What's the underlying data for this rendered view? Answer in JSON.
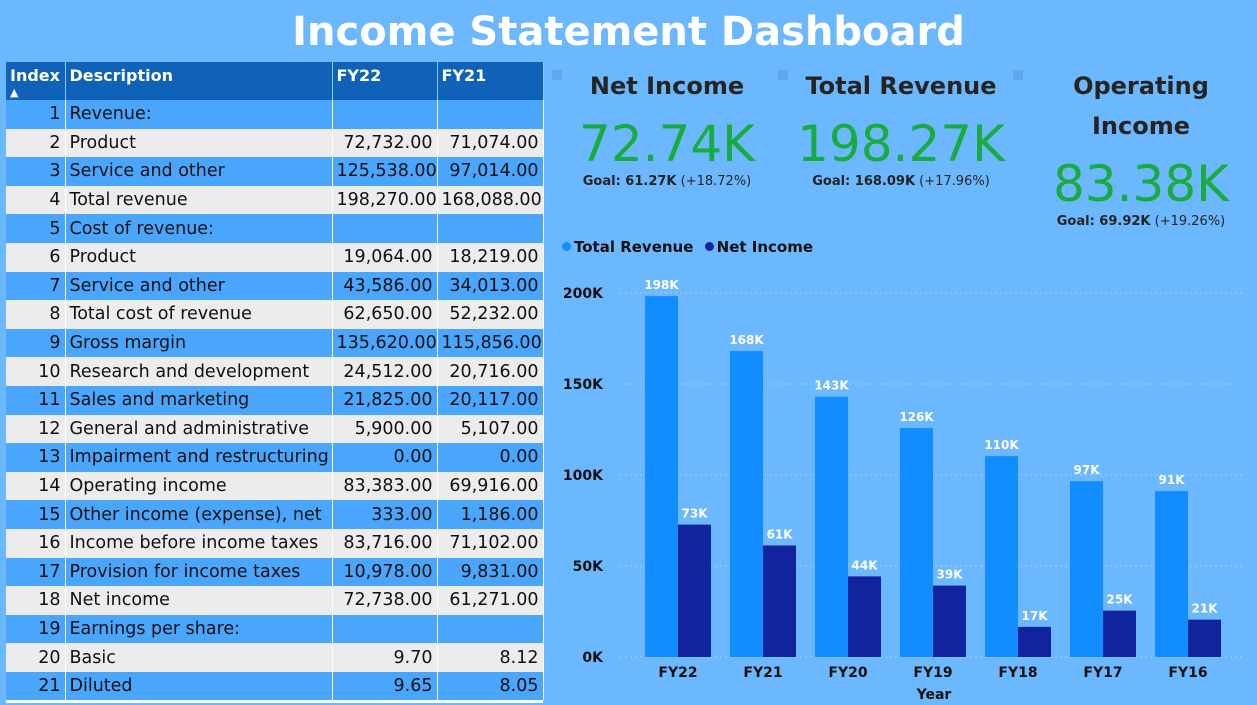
{
  "header": {
    "title": "Income Statement Dashboard"
  },
  "table": {
    "columns": [
      "Index",
      "Description",
      "FY22",
      "FY21"
    ],
    "sort_indicator": "▲",
    "rows": [
      {
        "index": "1",
        "description": "Revenue:",
        "fy22": "",
        "fy21": ""
      },
      {
        "index": "2",
        "description": "Product",
        "fy22": "72,732.00",
        "fy21": "71,074.00"
      },
      {
        "index": "3",
        "description": "Service and other",
        "fy22": "125,538.00",
        "fy21": "97,014.00"
      },
      {
        "index": "4",
        "description": "Total revenue",
        "fy22": "198,270.00",
        "fy21": "168,088.00"
      },
      {
        "index": "5",
        "description": "Cost of revenue:",
        "fy22": "",
        "fy21": ""
      },
      {
        "index": "6",
        "description": "Product",
        "fy22": "19,064.00",
        "fy21": "18,219.00"
      },
      {
        "index": "7",
        "description": "Service and other",
        "fy22": "43,586.00",
        "fy21": "34,013.00"
      },
      {
        "index": "8",
        "description": "Total cost of revenue",
        "fy22": "62,650.00",
        "fy21": "52,232.00"
      },
      {
        "index": "9",
        "description": "Gross margin",
        "fy22": "135,620.00",
        "fy21": "115,856.00"
      },
      {
        "index": "10",
        "description": "Research and development",
        "fy22": "24,512.00",
        "fy21": "20,716.00"
      },
      {
        "index": "11",
        "description": "Sales and marketing",
        "fy22": "21,825.00",
        "fy21": "20,117.00"
      },
      {
        "index": "12",
        "description": "General and administrative",
        "fy22": "5,900.00",
        "fy21": "5,107.00"
      },
      {
        "index": "13",
        "description": "Impairment and restructuring",
        "fy22": "0.00",
        "fy21": "0.00"
      },
      {
        "index": "14",
        "description": "Operating income",
        "fy22": "83,383.00",
        "fy21": "69,916.00"
      },
      {
        "index": "15",
        "description": "Other income (expense), net",
        "fy22": "333.00",
        "fy21": "1,186.00"
      },
      {
        "index": "16",
        "description": "Income before income taxes",
        "fy22": "83,716.00",
        "fy21": "71,102.00"
      },
      {
        "index": "17",
        "description": "Provision for income taxes",
        "fy22": "10,978.00",
        "fy21": "9,831.00"
      },
      {
        "index": "18",
        "description": "Net income",
        "fy22": "72,738.00",
        "fy21": "61,271.00"
      },
      {
        "index": "19",
        "description": "Earnings per share:",
        "fy22": "",
        "fy21": ""
      },
      {
        "index": "20",
        "description": "Basic",
        "fy22": "9.70",
        "fy21": "8.12"
      },
      {
        "index": "21",
        "description": "Diluted",
        "fy22": "9.65",
        "fy21": "8.05"
      }
    ]
  },
  "kpis": [
    {
      "label": "Net Income",
      "value": "72.74K",
      "goal_label": "Goal: 61.27K",
      "goal_delta": "(+18.72%)"
    },
    {
      "label": "Total Revenue",
      "value": "198.27K",
      "goal_label": "Goal: 168.09K",
      "goal_delta": "(+17.96%)"
    },
    {
      "label": "Operating Income",
      "value": "83.38K",
      "goal_label": "Goal: 69.92K",
      "goal_delta": "(+19.26%)"
    }
  ],
  "colors": {
    "background": "#6cb8fe",
    "total_revenue": "#118dff",
    "net_income": "#12239e",
    "kpi_value": "#1aab40",
    "table_header": "#0f62b7"
  },
  "chart_data": {
    "type": "bar",
    "categories": [
      "FY22",
      "FY21",
      "FY20",
      "FY19",
      "FY18",
      "FY17",
      "FY16"
    ],
    "series": [
      {
        "name": "Total Revenue",
        "values": [
          198270,
          168088,
          143015,
          125843,
          110360,
          96571,
          91154
        ],
        "labels": [
          "198K",
          "168K",
          "143K",
          "126K",
          "110K",
          "97K",
          "91K"
        ],
        "color": "#118dff"
      },
      {
        "name": "Net Income",
        "values": [
          72738,
          61271,
          44281,
          39240,
          16571,
          25489,
          20539
        ],
        "labels": [
          "73K",
          "61K",
          "44K",
          "39K",
          "17K",
          "25K",
          "21K"
        ],
        "color": "#12239e"
      }
    ],
    "xlabel": "Year",
    "ylabel": "",
    "ylim": [
      0,
      200000
    ],
    "yticks": [
      0,
      50000,
      100000,
      150000,
      200000
    ],
    "ytick_labels": [
      "0K",
      "50K",
      "100K",
      "150K",
      "200K"
    ],
    "legend_position": "top-left",
    "grid": true
  }
}
